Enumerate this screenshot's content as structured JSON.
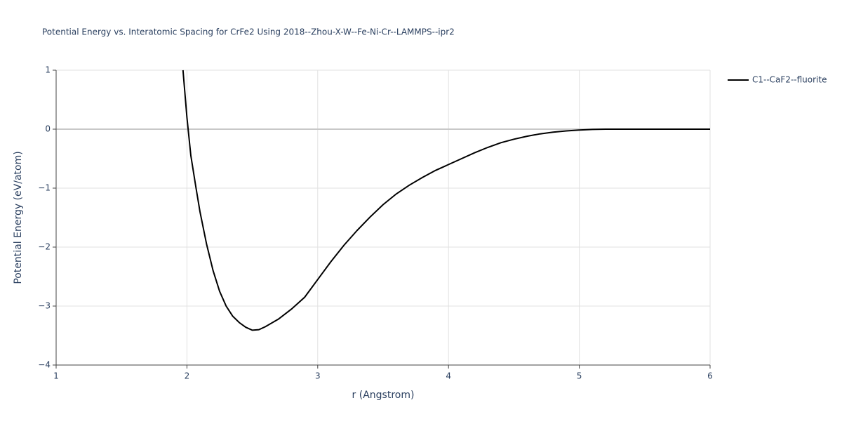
{
  "chart_data": {
    "type": "line",
    "title": "Potential Energy vs. Interatomic Spacing for CrFe2 Using 2018--Zhou-X-W--Fe-Ni-Cr--LAMMPS--ipr2",
    "x_label": "r (Angstrom)",
    "y_label": "Potential Energy (eV/atom)",
    "series": [
      {
        "name": "C1--CaF2--fluorite",
        "color": "#000000",
        "x": [
          1.97,
          2.0,
          2.03,
          2.07,
          2.1,
          2.15,
          2.2,
          2.25,
          2.3,
          2.35,
          2.4,
          2.45,
          2.5,
          2.55,
          2.6,
          2.7,
          2.8,
          2.9,
          3.0,
          3.1,
          3.2,
          3.3,
          3.4,
          3.5,
          3.6,
          3.7,
          3.8,
          3.9,
          4.0,
          4.1,
          4.2,
          4.3,
          4.4,
          4.5,
          4.6,
          4.7,
          4.8,
          4.9,
          5.0,
          5.1,
          5.2,
          5.5,
          6.0
        ],
        "values": [
          1.0,
          0.2,
          -0.45,
          -1.0,
          -1.4,
          -1.95,
          -2.4,
          -2.75,
          -3.0,
          -3.17,
          -3.28,
          -3.36,
          -3.41,
          -3.4,
          -3.35,
          -3.22,
          -3.05,
          -2.85,
          -2.55,
          -2.25,
          -1.97,
          -1.72,
          -1.49,
          -1.28,
          -1.1,
          -0.95,
          -0.82,
          -0.7,
          -0.6,
          -0.5,
          -0.4,
          -0.31,
          -0.23,
          -0.17,
          -0.12,
          -0.08,
          -0.05,
          -0.03,
          -0.015,
          -0.005,
          0,
          0,
          0
        ]
      }
    ],
    "xlim": [
      1,
      6
    ],
    "xticks": [
      1,
      2,
      3,
      4,
      5,
      6
    ],
    "ylim": [
      -4,
      1
    ],
    "yticks": [
      {
        "value": -4,
        "label": "−4"
      },
      {
        "value": -3,
        "label": "−3"
      },
      {
        "value": -2,
        "label": "−2"
      },
      {
        "value": -1,
        "label": "−1"
      },
      0,
      1
    ],
    "grid": true,
    "legend": "top-right"
  }
}
